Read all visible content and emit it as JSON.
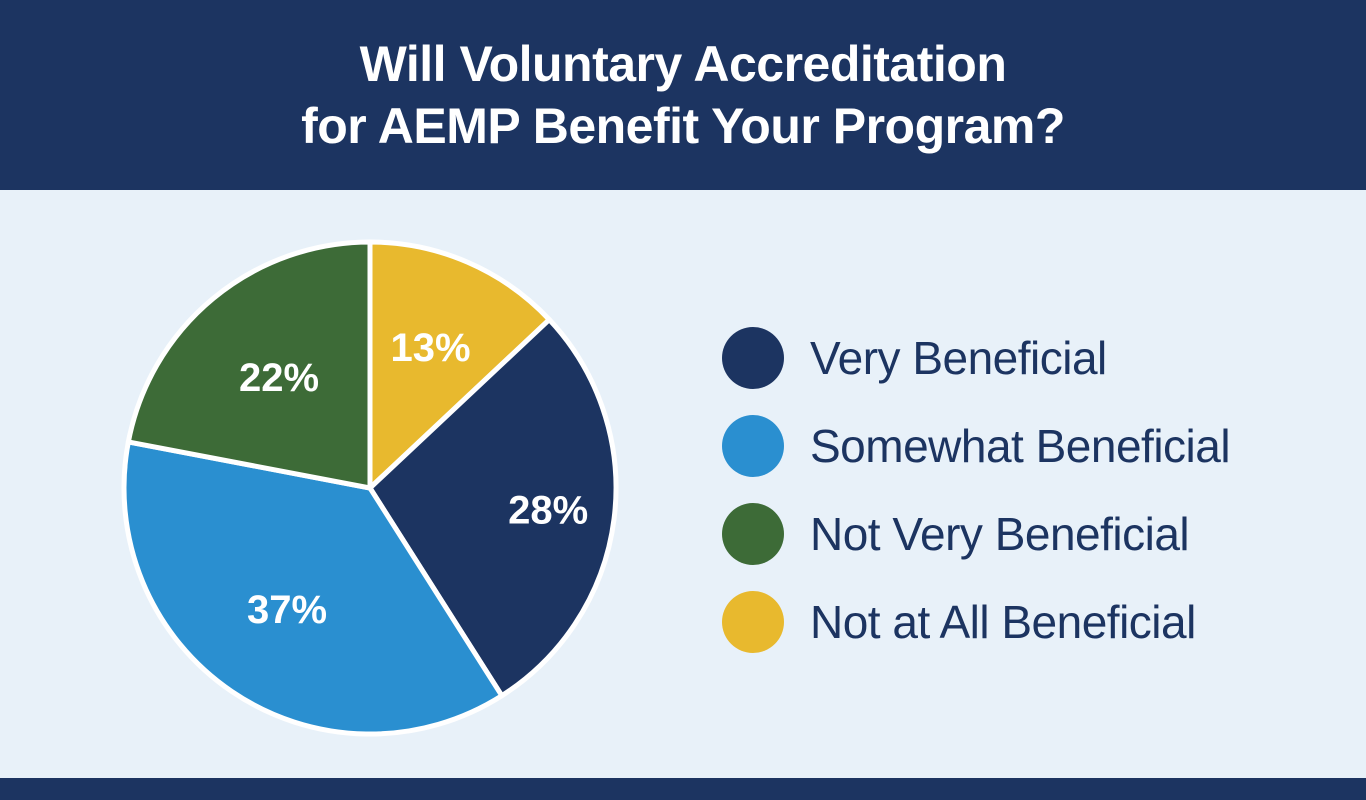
{
  "chart_data": {
    "type": "pie",
    "title_lines": [
      "Will Voluntary Accreditation",
      "for AEMP Benefit Your Program?"
    ],
    "categories": [
      "Very Beneficial",
      "Somewhat Beneficial",
      "Not Very Beneficial",
      "Not at All Beneficial"
    ],
    "values": [
      28,
      37,
      22,
      13
    ],
    "labels": [
      "28%",
      "37%",
      "22%",
      "13%"
    ],
    "colors": [
      "#1c3461",
      "#2a8fd0",
      "#3d6b37",
      "#e8b92e"
    ],
    "legend_position": "right"
  }
}
